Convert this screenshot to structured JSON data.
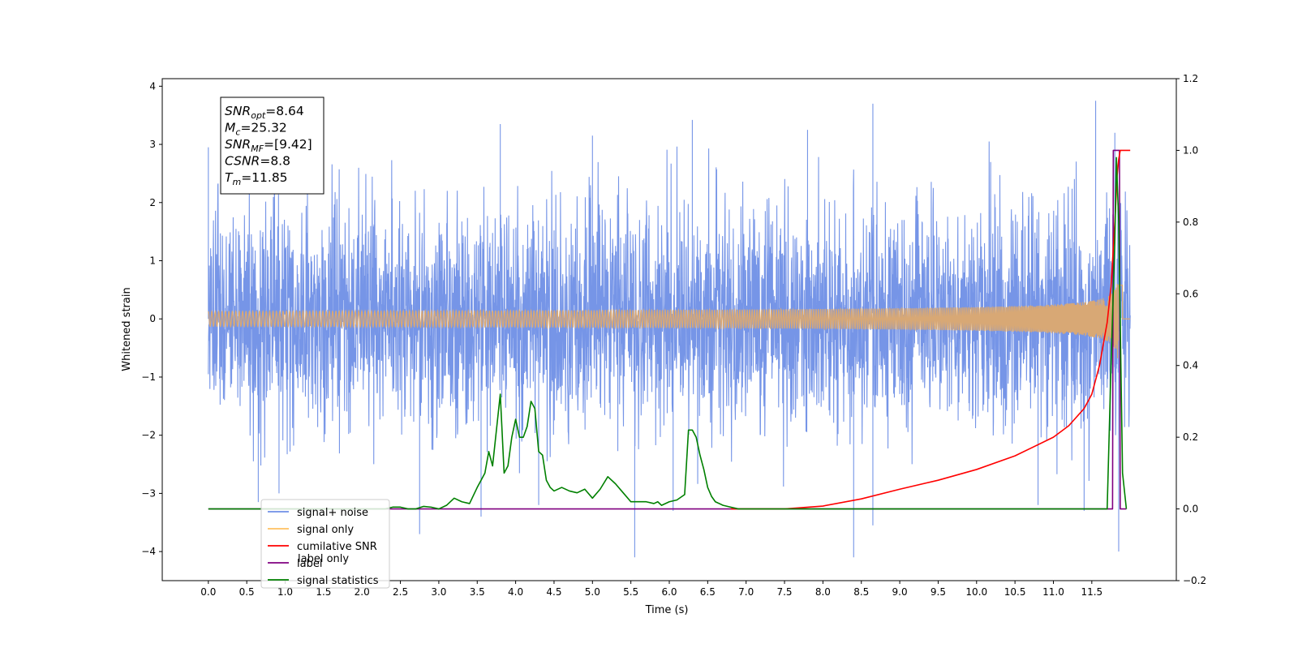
{
  "chart_data": {
    "type": "line",
    "xlabel": "Time (s)",
    "ylabel": "Whitened strain",
    "xlim": [
      -0.6,
      12.6
    ],
    "ylim": [
      -4.5,
      4.13
    ],
    "y2lim": [
      -0.2,
      1.2
    ],
    "x_ticks": [
      0.0,
      0.5,
      1.0,
      1.5,
      2.0,
      2.5,
      3.0,
      3.5,
      4.0,
      4.5,
      5.0,
      5.5,
      6.0,
      6.5,
      7.0,
      7.5,
      8.0,
      8.5,
      9.0,
      9.5,
      10.0,
      10.5,
      11.0,
      11.5
    ],
    "x_tick_labels": [
      "0.0",
      "0.5",
      "1.0",
      "1.5",
      "2.0",
      "2.5",
      "3.0",
      "3.5",
      "4.0",
      "4.5",
      "5.0",
      "5.5",
      "6.0",
      "6.5",
      "7.0",
      "7.5",
      "8.0",
      "8.5",
      "9.0",
      "9.5",
      "10.0",
      "10.5",
      "11.0",
      "11.5"
    ],
    "y_ticks": [
      4,
      3,
      2,
      1,
      0,
      -1,
      -2,
      -3,
      -4
    ],
    "y_tick_labels": [
      "4",
      "3",
      "2",
      "1",
      "0",
      "−1",
      "−2",
      "−3",
      "−4"
    ],
    "y2_ticks": [
      1.2,
      1.0,
      0.8,
      0.6,
      0.4,
      0.2,
      0.0,
      -0.2
    ],
    "y2_tick_labels": [
      "1.2",
      "1.0",
      "0.8",
      "0.6",
      "0.4",
      "0.2",
      "0.0",
      "−0.2"
    ],
    "annotation": {
      "lines": [
        {
          "base": "SNR",
          "sub": "opt",
          "value": "=8.64"
        },
        {
          "base": "M",
          "sub": "c",
          "value": "=25.32"
        },
        {
          "base": "SNR",
          "sub": "MF",
          "value": "=[9.42]"
        },
        {
          "base": "CSNR",
          "sub": "",
          "value": "=8.8"
        },
        {
          "base": "T",
          "sub": "m",
          "value": "=11.85"
        }
      ]
    },
    "legend": {
      "placement": "lower-left",
      "entries": [
        {
          "label": "signal+ noise",
          "color": "#6f8fe6"
        },
        {
          "label": "signal only",
          "color": "#ffc060"
        },
        {
          "label": "cumilative SNR",
          "color": "#ff0000"
        },
        {
          "label": "label",
          "color": "#800080"
        },
        {
          "label": "signal statistics",
          "color": "#008000"
        }
      ],
      "hidden_entry_label": "label only"
    },
    "series": [
      {
        "name": "signal+ noise",
        "axis": "left",
        "color": "#6f8fe6",
        "noise_std": 1.0,
        "x_range": [
          0.0,
          12.0
        ],
        "extremes": [
          {
            "x": 0.0,
            "y": 2.95
          },
          {
            "x": 0.65,
            "y": -3.15
          },
          {
            "x": 0.92,
            "y": -3.0
          },
          {
            "x": 2.75,
            "y": -3.7
          },
          {
            "x": 3.55,
            "y": -3.4
          },
          {
            "x": 3.8,
            "y": 3.35
          },
          {
            "x": 4.3,
            "y": -3.2
          },
          {
            "x": 5.0,
            "y": 3.15
          },
          {
            "x": 5.55,
            "y": -4.1
          },
          {
            "x": 6.05,
            "y": -3.3
          },
          {
            "x": 6.3,
            "y": 3.42
          },
          {
            "x": 7.8,
            "y": 3.25
          },
          {
            "x": 8.4,
            "y": -4.1
          },
          {
            "x": 8.65,
            "y": -3.55
          },
          {
            "x": 8.65,
            "y": 3.7
          },
          {
            "x": 10.8,
            "y": -3.2
          },
          {
            "x": 11.4,
            "y": -3.3
          },
          {
            "x": 11.55,
            "y": 3.75
          },
          {
            "x": 11.85,
            "y": -4.0
          },
          {
            "x": 11.8,
            "y": 3.2
          }
        ]
      },
      {
        "name": "signal only",
        "axis": "left",
        "color": "#d8a875",
        "merger_time": 11.85,
        "peak_amplitude": 1.0
      },
      {
        "name": "cumilative SNR",
        "axis": "right",
        "color": "#ff0000",
        "x": [
          6.8,
          7.5,
          8.0,
          8.5,
          9.0,
          9.5,
          10.0,
          10.5,
          11.0,
          11.2,
          11.4,
          11.5,
          11.6,
          11.7,
          11.75,
          11.8,
          11.83,
          11.85,
          11.87,
          11.9,
          12.0
        ],
        "y": [
          0.0,
          0.0,
          0.008,
          0.028,
          0.055,
          0.08,
          0.11,
          0.148,
          0.2,
          0.232,
          0.28,
          0.32,
          0.4,
          0.52,
          0.62,
          0.8,
          0.93,
          0.975,
          1.0,
          1.0,
          1.0
        ]
      },
      {
        "name": "label",
        "axis": "right",
        "color": "#800080",
        "x": [
          0.0,
          11.77,
          11.78,
          11.86,
          11.87,
          11.95
        ],
        "y": [
          0.0,
          0.0,
          1.0,
          1.0,
          0.0,
          0.0
        ]
      },
      {
        "name": "signal statistics",
        "axis": "right",
        "color": "#008000",
        "x": [
          0.0,
          2.2,
          2.3,
          2.4,
          2.5,
          2.6,
          2.7,
          2.8,
          2.9,
          3.0,
          3.1,
          3.2,
          3.3,
          3.4,
          3.5,
          3.55,
          3.6,
          3.65,
          3.7,
          3.75,
          3.8,
          3.85,
          3.9,
          3.95,
          4.0,
          4.05,
          4.1,
          4.15,
          4.2,
          4.25,
          4.3,
          4.35,
          4.4,
          4.45,
          4.5,
          4.6,
          4.7,
          4.8,
          4.9,
          5.0,
          5.1,
          5.2,
          5.3,
          5.4,
          5.5,
          5.6,
          5.7,
          5.8,
          5.85,
          5.9,
          6.0,
          6.1,
          6.2,
          6.25,
          6.3,
          6.35,
          6.4,
          6.45,
          6.5,
          6.55,
          6.6,
          6.7,
          6.8,
          6.9,
          7.0,
          11.65,
          11.7,
          11.75,
          11.8,
          11.82,
          11.85,
          11.9,
          11.95
        ],
        "y": [
          0.0,
          0.0,
          0.0,
          0.005,
          0.005,
          0.0,
          0.0,
          0.007,
          0.005,
          0.0,
          0.01,
          0.03,
          0.02,
          0.015,
          0.06,
          0.08,
          0.1,
          0.16,
          0.12,
          0.22,
          0.32,
          0.1,
          0.12,
          0.2,
          0.25,
          0.2,
          0.2,
          0.23,
          0.3,
          0.28,
          0.16,
          0.15,
          0.08,
          0.06,
          0.05,
          0.06,
          0.05,
          0.045,
          0.055,
          0.03,
          0.055,
          0.09,
          0.07,
          0.045,
          0.02,
          0.02,
          0.02,
          0.015,
          0.02,
          0.01,
          0.02,
          0.025,
          0.04,
          0.22,
          0.22,
          0.2,
          0.15,
          0.11,
          0.06,
          0.035,
          0.02,
          0.01,
          0.005,
          0.0,
          0.0,
          0.0,
          0.0,
          0.4,
          0.75,
          0.98,
          0.8,
          0.1,
          0.0
        ]
      }
    ]
  }
}
